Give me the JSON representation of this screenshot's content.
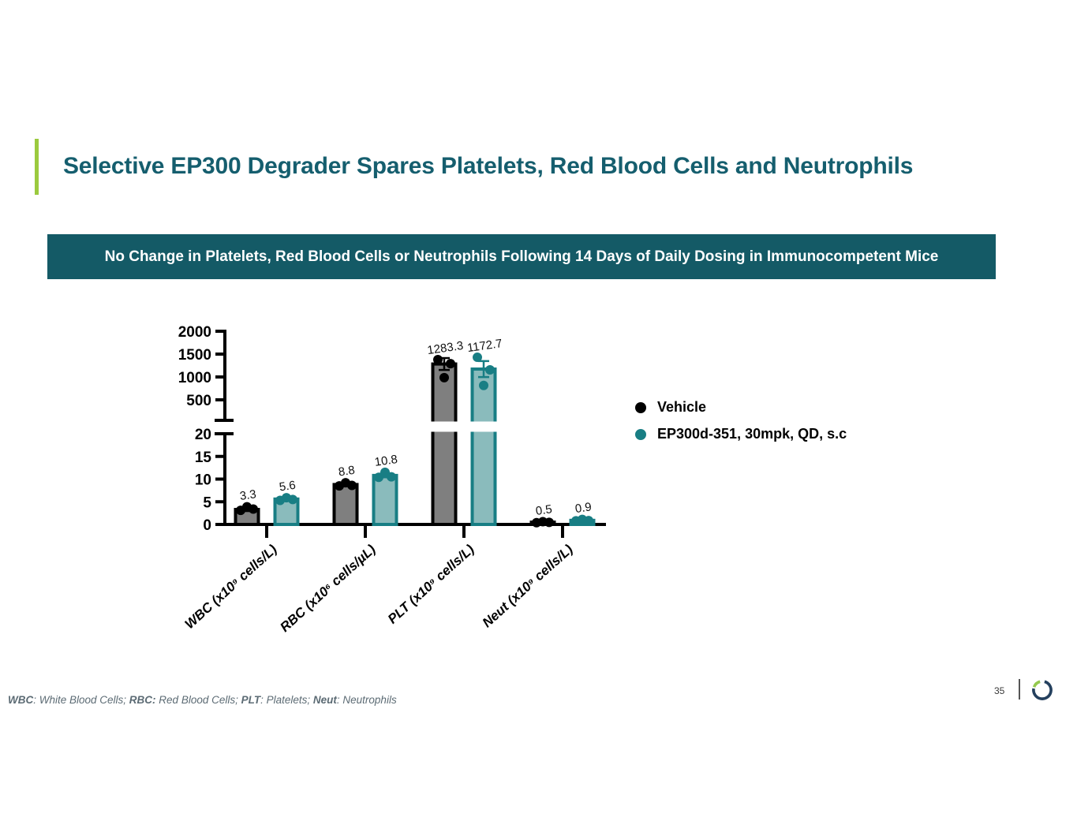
{
  "slide": {
    "title": "Selective EP300 Degrader Spares Platelets, Red Blood Cells and Neutrophils",
    "banner": "No Change in Platelets, Red Blood Cells or Neutrophils Following 14 Days of Daily Dosing in Immunocompetent Mice",
    "page_number": "35",
    "footnote": [
      {
        "abbr": "WBC",
        "rest": ": White Blood Cells; "
      },
      {
        "abbr": "RBC:",
        "rest": " Red Blood Cells; "
      },
      {
        "abbr": "PLT",
        "rest": ": Platelets; "
      },
      {
        "abbr": "Neut",
        "rest": ": Neutrophils"
      }
    ]
  },
  "colors": {
    "accent_green": "#9BCA3E",
    "title_teal": "#155E6E",
    "banner_teal": "#145A66",
    "vehicle_fill": "#7F7F7F",
    "vehicle_line": "#000000",
    "treated_fill": "#8ABBBC",
    "treated_line": "#187E84",
    "logo_navy": "#24405E",
    "logo_green": "#94C94E",
    "footnote_gray": "#5C6B74"
  },
  "chart_data": {
    "type": "bar",
    "title": "",
    "xlabel": "",
    "ylabel": "",
    "categories": [
      "WBC (x10⁹ cells/L)",
      "RBC (x10⁶ cells/µL)",
      "PLT (x10⁹ cells/L)",
      "Neut (x10⁹ cells/L)"
    ],
    "series": [
      {
        "name": "Vehicle",
        "fill": "#7F7F7F",
        "line": "#000000",
        "values": [
          3.3,
          8.8,
          1283.3,
          0.5
        ],
        "points": [
          [
            3.1,
            3.9,
            3.4
          ],
          [
            8.5,
            9.2,
            8.6
          ],
          [
            1380,
            1290,
            985
          ],
          [
            0.4,
            0.6,
            0.45
          ]
        ],
        "sem": [
          0.35,
          0.3,
          130,
          0.08
        ]
      },
      {
        "name": "EP300d-351, 30mpk, QD, s.c",
        "fill": "#8ABBBC",
        "line": "#187E84",
        "values": [
          5.6,
          10.8,
          1172.7,
          0.9
        ],
        "points": [
          [
            5.3,
            5.9,
            5.5
          ],
          [
            10.4,
            11.5,
            10.5
          ],
          [
            1430,
            1155,
            815
          ],
          [
            0.8,
            1.1,
            0.85
          ]
        ],
        "sem": [
          0.35,
          0.4,
          175,
          0.12
        ]
      }
    ],
    "value_labels": [
      [
        "3.3",
        "8.8",
        "1283.3",
        "0.5"
      ],
      [
        "5.6",
        "10.8",
        "1172.7",
        "0.9"
      ]
    ],
    "axis": {
      "y_break": true,
      "lower_range": [
        0,
        20
      ],
      "upper_range": [
        500,
        2000
      ],
      "lower_ticks": [
        0,
        5,
        10,
        15,
        20
      ],
      "upper_ticks": [
        500,
        1000,
        1500,
        2000
      ],
      "grid": false
    },
    "legend_position": "right",
    "legend_entries": [
      "Vehicle",
      "EP300d-351, 30mpk, QD, s.c"
    ]
  }
}
